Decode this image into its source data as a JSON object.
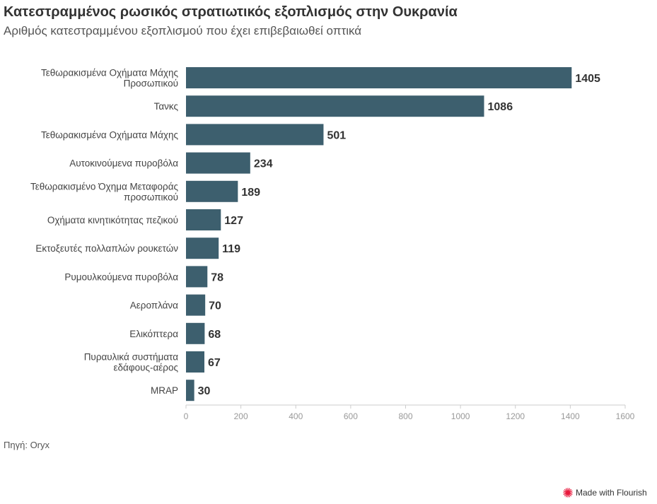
{
  "header": {
    "title": "Κατεστραμμένος ρωσικός στρατιωτικός εξοπλισμός στην Ουκρανία",
    "subtitle": "Αριθμός κατεστραμμένου εξοπλισμού που έχει επιβεβαιωθεί οπτικά"
  },
  "footer": {
    "source": "Πηγή: Oryx",
    "made_with": "Made with Flourish"
  },
  "colors": {
    "bar": "#3d5f6e",
    "axis": "#cccccc",
    "tick_text": "#999999"
  },
  "chart_data": {
    "type": "bar",
    "orientation": "horizontal",
    "categories": [
      [
        "Τεθωρακισμένα Οχήματα Μάχης",
        "Προσωπικού"
      ],
      [
        "Τανκς"
      ],
      [
        "Τεθωρακισμένα Οχήματα Μάχης"
      ],
      [
        "Αυτοκινούμενα πυροβόλα"
      ],
      [
        "Τεθωρακισμένο Όχημα Μεταφοράς",
        "προσωπικού"
      ],
      [
        "Οχήματα κινητικότητας πεζικού"
      ],
      [
        "Εκτοξευτές πολλαπλών ρουκετών"
      ],
      [
        "Ρυμουλκούμενα πυροβόλα"
      ],
      [
        "Αεροπλάνα"
      ],
      [
        "Ελικόπτερα"
      ],
      [
        "Πυραυλικά συστήματα",
        "εδάφους-αέρος"
      ],
      [
        "MRAP"
      ]
    ],
    "values": [
      1405,
      1086,
      501,
      234,
      189,
      127,
      119,
      78,
      70,
      68,
      67,
      30
    ],
    "xlim": [
      0,
      1600
    ],
    "xticks": [
      0,
      200,
      400,
      600,
      800,
      1000,
      1200,
      1400,
      1600
    ],
    "data_labels": true
  }
}
